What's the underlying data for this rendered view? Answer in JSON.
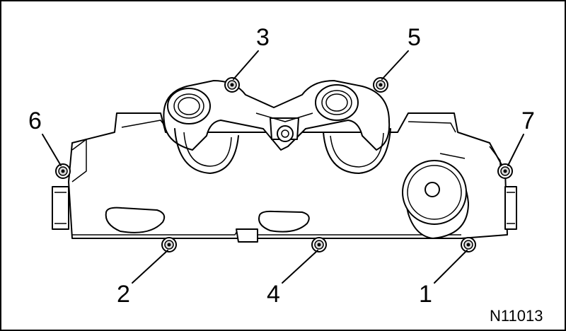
{
  "diagram": {
    "figure_id": "N11013",
    "callouts": [
      {
        "id": "c1",
        "label": "1"
      },
      {
        "id": "c2",
        "label": "2"
      },
      {
        "id": "c3",
        "label": "3"
      },
      {
        "id": "c4",
        "label": "4"
      },
      {
        "id": "c5",
        "label": "5"
      },
      {
        "id": "c6",
        "label": "6"
      },
      {
        "id": "c7",
        "label": "7"
      }
    ]
  }
}
